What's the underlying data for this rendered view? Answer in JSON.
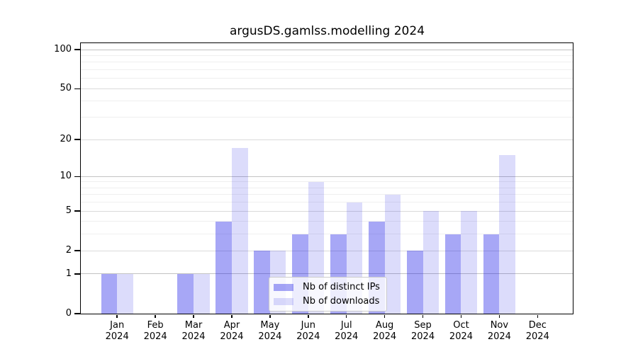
{
  "title": "argusDS.gamlss.modelling 2024",
  "chart_data": {
    "type": "bar",
    "title": "argusDS.gamlss.modelling 2024",
    "categories": [
      "Jan 2024",
      "Feb 2024",
      "Mar 2024",
      "Apr 2024",
      "May 2024",
      "Jun 2024",
      "Jul 2024",
      "Aug 2024",
      "Sep 2024",
      "Oct 2024",
      "Nov 2024",
      "Dec 2024"
    ],
    "month_labels": [
      "Jan",
      "Feb",
      "Mar",
      "Apr",
      "May",
      "Jun",
      "Jul",
      "Aug",
      "Sep",
      "Oct",
      "Nov",
      "Dec"
    ],
    "year_label": "2024",
    "series": [
      {
        "name": "Nb of distinct IPs",
        "color": "#a7a7f7",
        "color_rgba": "rgba(10,10,230,0.36)",
        "values": [
          1,
          0,
          1,
          4,
          2,
          3,
          3,
          4,
          2,
          3,
          3,
          0
        ]
      },
      {
        "name": "Nb of downloads",
        "color": "#dcdcfb",
        "color_rgba": "rgba(10,10,230,0.14)",
        "values": [
          1,
          0,
          1,
          17,
          2,
          9,
          6,
          7,
          5,
          5,
          15,
          0
        ]
      }
    ],
    "yscale": "log1p",
    "ylim": [
      0,
      115
    ],
    "ytick_values": [
      100,
      50,
      20,
      10,
      5,
      2,
      1,
      0
    ],
    "ytick_labels": [
      "100",
      "50",
      "20",
      "10",
      "5",
      "2",
      "1",
      "0"
    ],
    "grid": true,
    "gridlines": [
      {
        "values": [
          3,
          4,
          6,
          7,
          8,
          9,
          30,
          40,
          60,
          70,
          80,
          90
        ],
        "color": "#efefef"
      },
      {
        "values": [
          2,
          5,
          20,
          50
        ],
        "color": "#dadada"
      },
      {
        "values": [
          1,
          10,
          100
        ],
        "color": "#c3c3c3"
      }
    ],
    "legend_position": "lower center-right inside plot"
  },
  "legend": {
    "items": [
      {
        "label": "Nb of distinct IPs"
      },
      {
        "label": "Nb of downloads"
      }
    ]
  }
}
